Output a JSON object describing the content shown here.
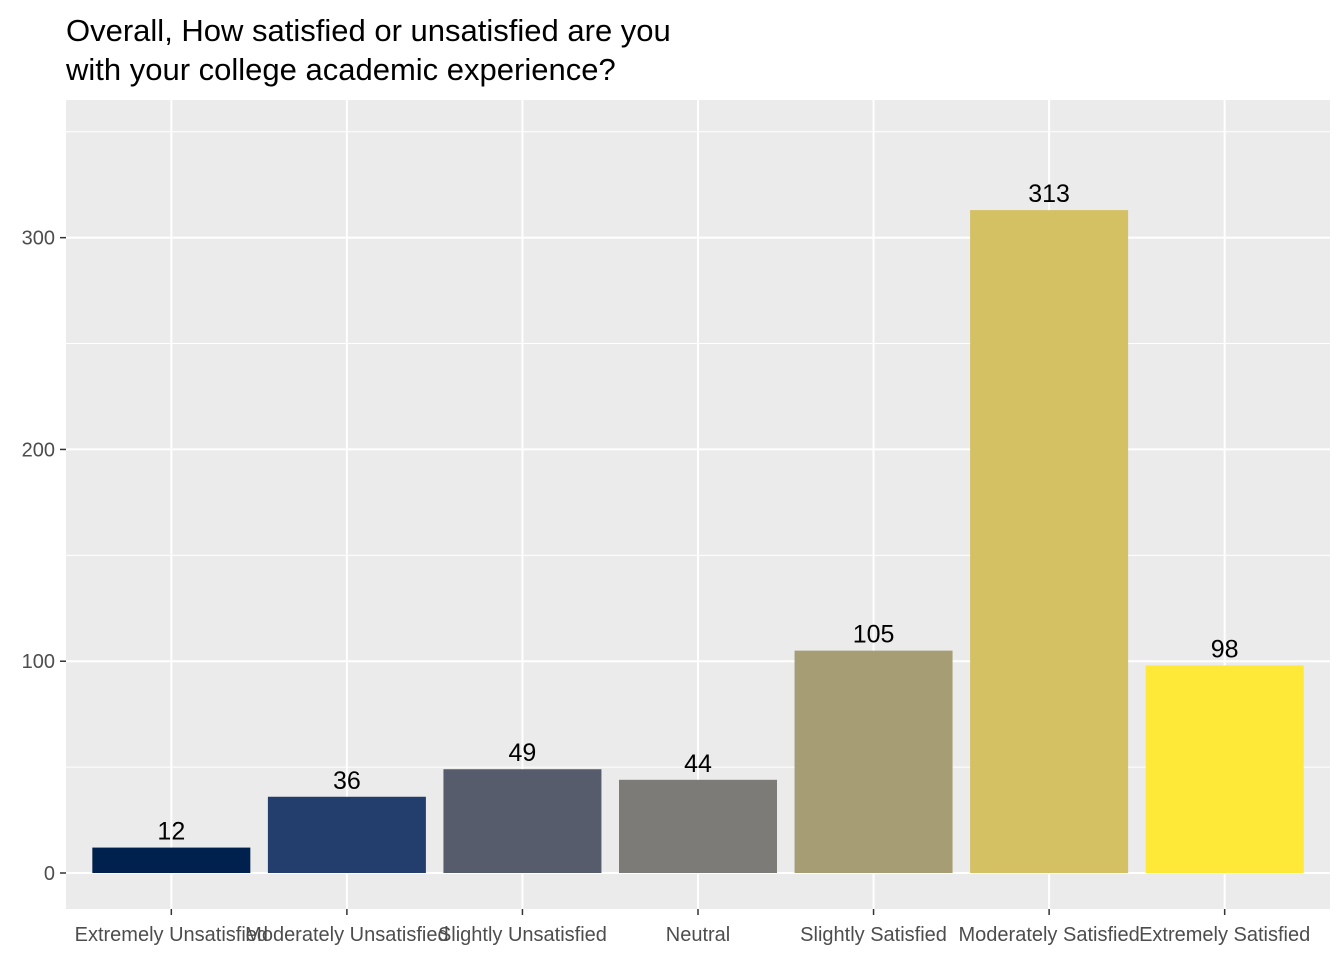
{
  "chart_data": {
    "type": "bar",
    "title_lines": [
      "Overall, How satisfied or unsatisfied are you",
      "with your college academic experience?"
    ],
    "xlabel": "",
    "ylabel": "",
    "categories": [
      "Extremely Unsatisfied",
      "Moderately Unsatisfied",
      "Slightly Unsatisfied",
      "Neutral",
      "Slightly Satisfied",
      "Moderately Satisfied",
      "Extremely Satisfied"
    ],
    "values": [
      12,
      36,
      49,
      44,
      105,
      313,
      98
    ],
    "colors": [
      "#00204d",
      "#233e6c",
      "#575c6d",
      "#7c7b78",
      "#a69d75",
      "#d3c164",
      "#fee838"
    ],
    "ylim": [
      -17,
      365
    ],
    "yticks": [
      0,
      100,
      200,
      300
    ],
    "y_minor_ticks": [
      50,
      150,
      250,
      350
    ],
    "grid": true,
    "panel_background": "#ebebeb",
    "grid_color": "#ffffff",
    "legend": "none"
  }
}
